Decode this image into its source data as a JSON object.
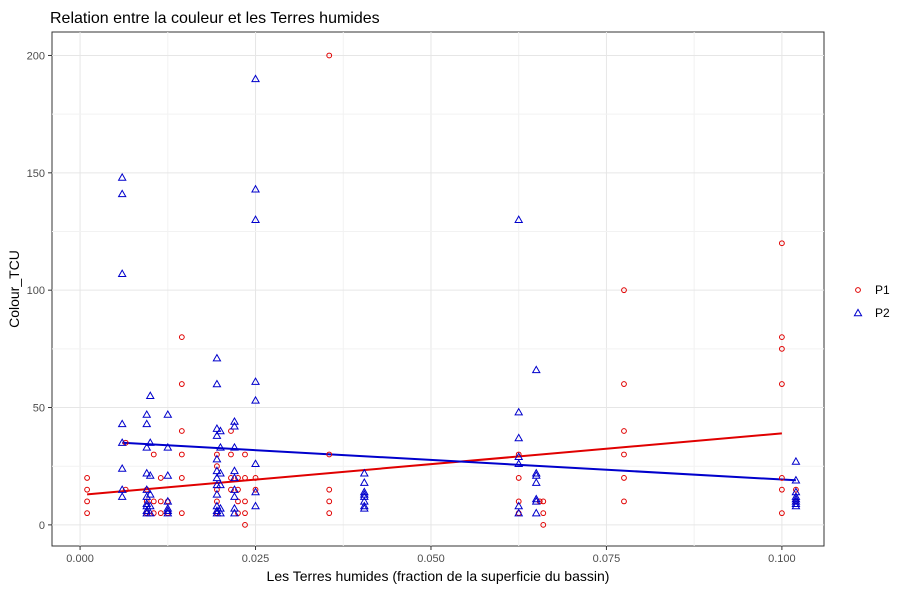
{
  "chart_data": {
    "type": "scatter",
    "title": "Relation entre la couleur et les Terres humides",
    "xlabel": "Les Terres humides (fraction de la superficie du bassin)",
    "ylabel": "Colour_TCU",
    "xlim": [
      -0.004,
      0.106
    ],
    "ylim": [
      -9,
      210
    ],
    "x_ticks": [
      0.0,
      0.025,
      0.05,
      0.075,
      0.1
    ],
    "x_tick_labels": [
      "0.000",
      "0.025",
      "0.050",
      "0.075",
      "0.100"
    ],
    "y_ticks": [
      0,
      50,
      100,
      150,
      200
    ],
    "y_tick_labels": [
      "0",
      "50",
      "100",
      "150",
      "200"
    ],
    "grid": true,
    "legend_position": "right",
    "series": [
      {
        "name": "P1",
        "color": "#e00000",
        "marker": "circle",
        "points": [
          [
            0.001,
            20
          ],
          [
            0.001,
            15
          ],
          [
            0.001,
            10
          ],
          [
            0.001,
            5
          ],
          [
            0.0065,
            35
          ],
          [
            0.0065,
            15
          ],
          [
            0.0095,
            15
          ],
          [
            0.0095,
            10
          ],
          [
            0.0095,
            5
          ],
          [
            0.0105,
            30
          ],
          [
            0.0105,
            10
          ],
          [
            0.0105,
            5
          ],
          [
            0.0115,
            20
          ],
          [
            0.0115,
            10
          ],
          [
            0.0115,
            5
          ],
          [
            0.0125,
            10
          ],
          [
            0.0125,
            5
          ],
          [
            0.0145,
            80
          ],
          [
            0.0145,
            60
          ],
          [
            0.0145,
            40
          ],
          [
            0.0145,
            30
          ],
          [
            0.0145,
            20
          ],
          [
            0.0145,
            5
          ],
          [
            0.0195,
            30
          ],
          [
            0.0195,
            25
          ],
          [
            0.0195,
            15
          ],
          [
            0.0195,
            10
          ],
          [
            0.0195,
            5
          ],
          [
            0.0215,
            40
          ],
          [
            0.0215,
            30
          ],
          [
            0.0215,
            20
          ],
          [
            0.0215,
            15
          ],
          [
            0.0225,
            20
          ],
          [
            0.0225,
            15
          ],
          [
            0.0225,
            10
          ],
          [
            0.0225,
            5
          ],
          [
            0.0235,
            30
          ],
          [
            0.0235,
            20
          ],
          [
            0.0235,
            10
          ],
          [
            0.0235,
            5
          ],
          [
            0.0235,
            0
          ],
          [
            0.025,
            20
          ],
          [
            0.025,
            15
          ],
          [
            0.0355,
            200
          ],
          [
            0.0355,
            30
          ],
          [
            0.0355,
            15
          ],
          [
            0.0355,
            10
          ],
          [
            0.0355,
            5
          ],
          [
            0.0625,
            30
          ],
          [
            0.0625,
            20
          ],
          [
            0.0625,
            10
          ],
          [
            0.0625,
            5
          ],
          [
            0.0655,
            10
          ],
          [
            0.066,
            10
          ],
          [
            0.066,
            5
          ],
          [
            0.066,
            0
          ],
          [
            0.0775,
            100
          ],
          [
            0.0775,
            60
          ],
          [
            0.0775,
            40
          ],
          [
            0.0775,
            30
          ],
          [
            0.0775,
            20
          ],
          [
            0.0775,
            10
          ],
          [
            0.1,
            120
          ],
          [
            0.1,
            80
          ],
          [
            0.1,
            75
          ],
          [
            0.1,
            60
          ],
          [
            0.1,
            20
          ],
          [
            0.1,
            15
          ],
          [
            0.1,
            5
          ],
          [
            0.102,
            15
          ],
          [
            0.102,
            10
          ]
        ],
        "trend": [
          [
            0.001,
            13
          ],
          [
            0.1,
            39
          ]
        ]
      },
      {
        "name": "P2",
        "color": "#0000cc",
        "marker": "triangle",
        "points": [
          [
            0.006,
            148
          ],
          [
            0.006,
            141
          ],
          [
            0.006,
            107
          ],
          [
            0.006,
            43
          ],
          [
            0.006,
            35
          ],
          [
            0.006,
            24
          ],
          [
            0.006,
            15
          ],
          [
            0.006,
            12
          ],
          [
            0.0095,
            47
          ],
          [
            0.0095,
            43
          ],
          [
            0.0095,
            33
          ],
          [
            0.0095,
            22
          ],
          [
            0.0095,
            15
          ],
          [
            0.0095,
            12
          ],
          [
            0.0095,
            9
          ],
          [
            0.0095,
            8
          ],
          [
            0.0095,
            6
          ],
          [
            0.0095,
            5
          ],
          [
            0.01,
            55
          ],
          [
            0.01,
            35
          ],
          [
            0.01,
            21
          ],
          [
            0.01,
            13
          ],
          [
            0.01,
            8
          ],
          [
            0.01,
            5
          ],
          [
            0.0125,
            47
          ],
          [
            0.0125,
            33
          ],
          [
            0.0125,
            21
          ],
          [
            0.0125,
            10
          ],
          [
            0.0125,
            7
          ],
          [
            0.0125,
            6
          ],
          [
            0.0125,
            5
          ],
          [
            0.0195,
            71
          ],
          [
            0.0195,
            60
          ],
          [
            0.0195,
            41
          ],
          [
            0.0195,
            38
          ],
          [
            0.0195,
            28
          ],
          [
            0.0195,
            23
          ],
          [
            0.0195,
            20
          ],
          [
            0.0195,
            17
          ],
          [
            0.0195,
            13
          ],
          [
            0.0195,
            8
          ],
          [
            0.0195,
            6
          ],
          [
            0.0195,
            5
          ],
          [
            0.02,
            40
          ],
          [
            0.02,
            33
          ],
          [
            0.02,
            22
          ],
          [
            0.02,
            17
          ],
          [
            0.02,
            7
          ],
          [
            0.02,
            5
          ],
          [
            0.022,
            44
          ],
          [
            0.022,
            42
          ],
          [
            0.022,
            33
          ],
          [
            0.022,
            23
          ],
          [
            0.022,
            20
          ],
          [
            0.022,
            15
          ],
          [
            0.022,
            12
          ],
          [
            0.022,
            7
          ],
          [
            0.022,
            5
          ],
          [
            0.025,
            190
          ],
          [
            0.025,
            143
          ],
          [
            0.025,
            130
          ],
          [
            0.025,
            61
          ],
          [
            0.025,
            53
          ],
          [
            0.025,
            26
          ],
          [
            0.025,
            14
          ],
          [
            0.025,
            8
          ],
          [
            0.0405,
            22
          ],
          [
            0.0405,
            18
          ],
          [
            0.0405,
            14
          ],
          [
            0.0405,
            13
          ],
          [
            0.0405,
            12
          ],
          [
            0.0405,
            10
          ],
          [
            0.0405,
            8
          ],
          [
            0.0405,
            7
          ],
          [
            0.0625,
            130
          ],
          [
            0.0625,
            48
          ],
          [
            0.0625,
            37
          ],
          [
            0.0625,
            29
          ],
          [
            0.0625,
            26
          ],
          [
            0.0625,
            8
          ],
          [
            0.0625,
            5
          ],
          [
            0.065,
            66
          ],
          [
            0.065,
            22
          ],
          [
            0.065,
            21
          ],
          [
            0.065,
            18
          ],
          [
            0.065,
            11
          ],
          [
            0.065,
            10
          ],
          [
            0.065,
            5
          ],
          [
            0.102,
            27
          ],
          [
            0.102,
            19
          ],
          [
            0.102,
            14
          ],
          [
            0.102,
            12
          ],
          [
            0.102,
            11
          ],
          [
            0.102,
            10
          ],
          [
            0.102,
            9
          ],
          [
            0.102,
            8
          ]
        ],
        "trend": [
          [
            0.006,
            35
          ],
          [
            0.102,
            19
          ]
        ]
      }
    ]
  }
}
